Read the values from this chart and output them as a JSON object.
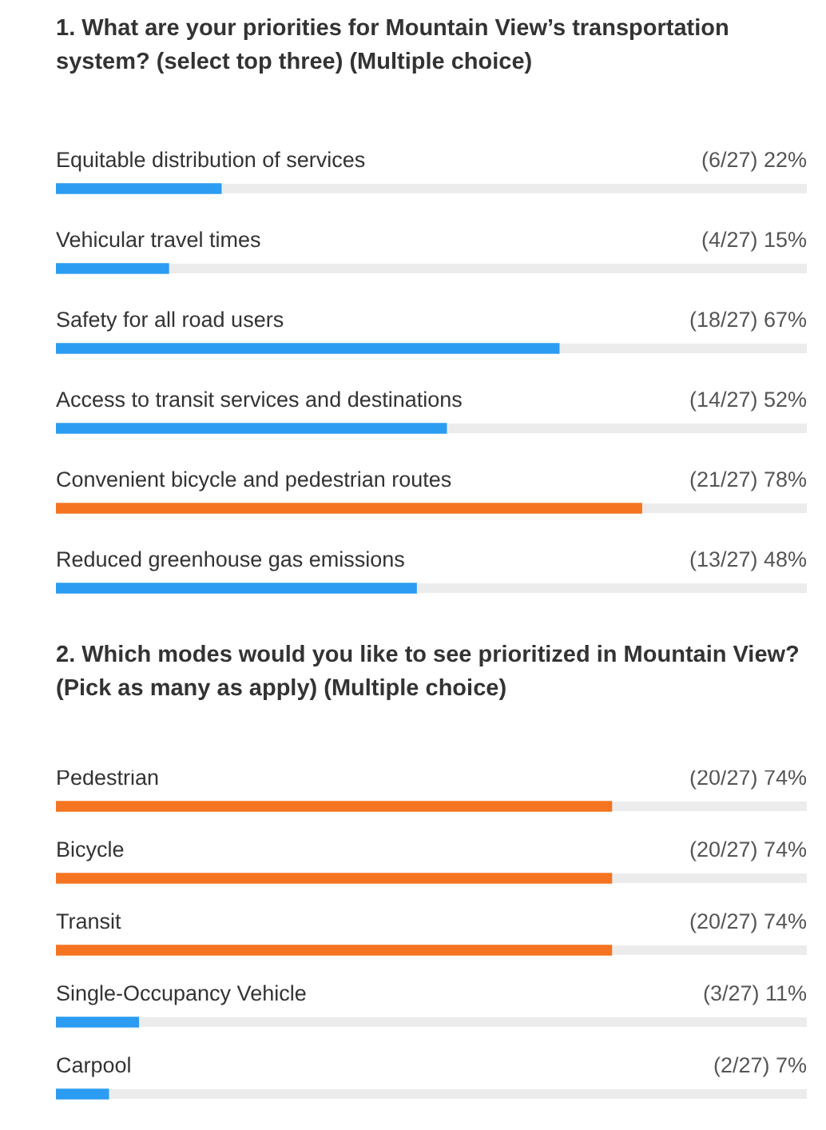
{
  "chart_data": [
    {
      "type": "bar",
      "orientation": "horizontal",
      "title": "1. What are your priorities for Mountain View’s transportation system? (select top three) (Multiple choice)",
      "categories": [
        "Equitable distribution of services",
        "Vehicular travel times",
        "Safety for all road users",
        "Access to transit services and destinations",
        "Convenient bicycle and pedestrian routes",
        "Reduced greenhouse gas emissions"
      ],
      "values": [
        22,
        15,
        67,
        52,
        78,
        48
      ],
      "value_labels": [
        "(6/27) 22%",
        "(4/27) 15%",
        "(18/27) 67%",
        "(14/27) 52%",
        "(21/27) 78%",
        "(13/27) 48%"
      ],
      "colors": [
        "#2b9cf2",
        "#2b9cf2",
        "#2b9cf2",
        "#2b9cf2",
        "#f47421",
        "#2b9cf2"
      ],
      "xlim": [
        0,
        100
      ]
    },
    {
      "type": "bar",
      "orientation": "horizontal",
      "title": "2. Which modes would you like to see prioritized in Mountain View? (Pick as many as apply) (Multiple choice)",
      "categories": [
        "Pedestrian",
        "Bicycle",
        "Transit",
        "Single-Occupancy Vehicle",
        "Carpool"
      ],
      "values": [
        74,
        74,
        74,
        11,
        7
      ],
      "value_labels": [
        "(20/27) 74%",
        "(20/27) 74%",
        "(20/27) 74%",
        "(3/27) 11%",
        "(2/27) 7%"
      ],
      "colors": [
        "#f47421",
        "#f47421",
        "#f47421",
        "#2b9cf2",
        "#2b9cf2"
      ],
      "xlim": [
        0,
        100
      ]
    }
  ]
}
